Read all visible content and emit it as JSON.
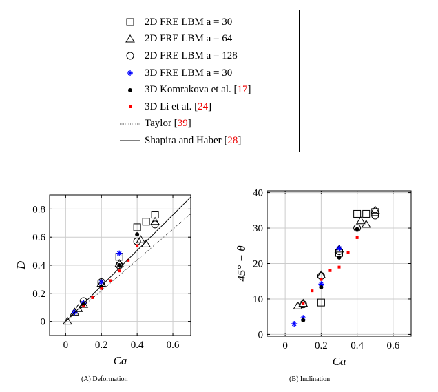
{
  "legend": [
    {
      "label": "2D FRE LBM a = 30",
      "marker": "square",
      "ref": ""
    },
    {
      "label": "2D FRE LBM a = 64",
      "marker": "triangle",
      "ref": ""
    },
    {
      "label": "2D FRE LBM a = 128",
      "marker": "circle",
      "ref": ""
    },
    {
      "label": "3D FRE LBM a = 30",
      "marker": "star",
      "color": "#0000ff",
      "ref": ""
    },
    {
      "label": "3D Komrakova et al. [",
      "marker": "dot",
      "ref": "17",
      "close": "]"
    },
    {
      "label": "3D Li et al. [",
      "marker": "redsquare",
      "color": "#ff0000",
      "ref": "24",
      "close": "]"
    },
    {
      "label": "Taylor [",
      "marker": "dotted",
      "ref": "39",
      "close": "]"
    },
    {
      "label": "Shapira and Haber [",
      "marker": "line",
      "ref": "28",
      "close": "]"
    }
  ],
  "chart_data": [
    {
      "type": "scatter",
      "caption": "(A) Deformation",
      "xlabel": "Ca",
      "ylabel": "D",
      "xlim": [
        -0.09,
        0.7
      ],
      "ylim": [
        -0.1,
        0.9
      ],
      "xticks": [
        0,
        0.2,
        0.4,
        0.6
      ],
      "yticks": [
        0,
        0.2,
        0.4,
        0.6,
        0.8
      ],
      "grid": true,
      "series": [
        {
          "name": "2D FRE LBM a = 30",
          "marker": "square",
          "points": [
            [
              0.2,
              0.27
            ],
            [
              0.3,
              0.46
            ],
            [
              0.4,
              0.67
            ],
            [
              0.45,
              0.71
            ],
            [
              0.5,
              0.76
            ]
          ]
        },
        {
          "name": "2D FRE LBM a = 64",
          "marker": "triangle",
          "points": [
            [
              0.01,
              0.0
            ],
            [
              0.05,
              0.065
            ],
            [
              0.07,
              0.09
            ],
            [
              0.1,
              0.12
            ],
            [
              0.2,
              0.27
            ],
            [
              0.3,
              0.41
            ],
            [
              0.42,
              0.58
            ],
            [
              0.45,
              0.55
            ],
            [
              0.5,
              0.71
            ]
          ]
        },
        {
          "name": "2D FRE LBM a = 128",
          "marker": "circle",
          "points": [
            [
              0.1,
              0.145
            ],
            [
              0.2,
              0.28
            ],
            [
              0.3,
              0.4
            ],
            [
              0.4,
              0.57
            ],
            [
              0.5,
              0.69
            ]
          ]
        },
        {
          "name": "3D FRE LBM a = 30",
          "marker": "star",
          "points": [
            [
              0.05,
              0.065
            ],
            [
              0.1,
              0.13
            ],
            [
              0.2,
              0.28
            ],
            [
              0.3,
              0.485
            ]
          ]
        },
        {
          "name": "3D Komrakova et al. [17]",
          "marker": "dot",
          "points": [
            [
              0.1,
              0.12
            ],
            [
              0.2,
              0.25
            ],
            [
              0.3,
              0.4
            ],
            [
              0.4,
              0.62
            ]
          ]
        },
        {
          "name": "3D Li et al. [24]",
          "marker": "redsquare",
          "points": [
            [
              0.1,
              0.11
            ],
            [
              0.15,
              0.17
            ],
            [
              0.2,
              0.235
            ],
            [
              0.25,
              0.29
            ],
            [
              0.3,
              0.36
            ],
            [
              0.35,
              0.435
            ],
            [
              0.4,
              0.54
            ]
          ]
        },
        {
          "name": "Taylor [39]",
          "marker": "dotted",
          "points": [
            [
              0,
              0
            ],
            [
              0.7,
              0.766
            ]
          ]
        },
        {
          "name": "Shapira and Haber [28]",
          "marker": "line",
          "points": [
            [
              0,
              0
            ],
            [
              0.7,
              0.885
            ]
          ]
        }
      ]
    },
    {
      "type": "scatter",
      "caption": "(B) Inclination",
      "xlabel": "Ca",
      "ylabel": "45° − θ",
      "xlim": [
        -0.1,
        0.7
      ],
      "ylim": [
        -0.5,
        40.5
      ],
      "xticks": [
        0,
        0.2,
        0.4,
        0.6
      ],
      "yticks": [
        0,
        10,
        20,
        30,
        40
      ],
      "grid": true,
      "series": [
        {
          "name": "2D FRE LBM a = 30",
          "marker": "square",
          "points": [
            [
              0.2,
              9
            ],
            [
              0.3,
              23
            ],
            [
              0.4,
              34
            ],
            [
              0.45,
              34
            ],
            [
              0.5,
              34.5
            ]
          ]
        },
        {
          "name": "2D FRE LBM a = 64",
          "marker": "triangle",
          "points": [
            [
              0.07,
              8
            ],
            [
              0.1,
              8.7
            ],
            [
              0.2,
              16.7
            ],
            [
              0.3,
              24
            ],
            [
              0.42,
              32
            ],
            [
              0.45,
              31
            ],
            [
              0.5,
              35
            ]
          ]
        },
        {
          "name": "2D FRE LBM a = 128",
          "marker": "circle",
          "points": [
            [
              0.1,
              8.5
            ],
            [
              0.2,
              16.5
            ],
            [
              0.3,
              23.5
            ],
            [
              0.4,
              30
            ],
            [
              0.5,
              33.5
            ]
          ]
        },
        {
          "name": "3D FRE LBM a = 30",
          "marker": "star",
          "points": [
            [
              0.05,
              3
            ],
            [
              0.1,
              4.7
            ],
            [
              0.2,
              14.2
            ],
            [
              0.3,
              24.3
            ]
          ]
        },
        {
          "name": "3D Komrakova et al. [17]",
          "marker": "dot",
          "points": [
            [
              0.1,
              4
            ],
            [
              0.2,
              13.3
            ],
            [
              0.3,
              21.7
            ],
            [
              0.4,
              29.7
            ]
          ]
        },
        {
          "name": "3D Li et al. [24]",
          "marker": "redsquare",
          "points": [
            [
              0.1,
              8.7
            ],
            [
              0.15,
              12.3
            ],
            [
              0.2,
              15.5
            ],
            [
              0.25,
              18
            ],
            [
              0.3,
              19
            ],
            [
              0.35,
              23.2
            ],
            [
              0.4,
              27.3
            ]
          ]
        }
      ]
    }
  ]
}
